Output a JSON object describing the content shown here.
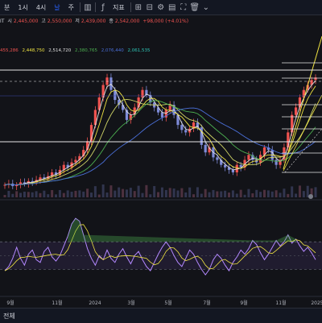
{
  "toolbar": {
    "items": [
      "분",
      "1시",
      "4시",
      "날",
      "주"
    ],
    "indicators_label": "지표",
    "title_fragment": "IT"
  },
  "ohlc": {
    "open_label": "시",
    "open": "2,445,000",
    "high_label": "고",
    "high": "2,550,000",
    "low_label": "저",
    "low": "2,439,000",
    "close_label": "종",
    "close": "2,542,000",
    "change": "+98,000 (+4.01%)"
  },
  "ma_values": [
    "455,286",
    "2,448,750",
    "2,514,720",
    "2,380,765",
    "2,076,440",
    "2,061,535"
  ],
  "colors": {
    "up": "#ef5350",
    "down": "#7e8bd8",
    "ma_white": "#e0e0e0",
    "ma_yellow": "#f0e442",
    "ma_olive": "#cfd467",
    "ma_green": "#4caf50",
    "ma_blue": "#4a6fd8",
    "rsi_line": "#b388ff"
  },
  "footer": {
    "label": "전체"
  },
  "chart_data": {
    "type": "line",
    "x_ticks": [
      "9월",
      "11월",
      "2024",
      "3월",
      "5월",
      "7월",
      "9월",
      "11월",
      "2025"
    ],
    "x": [
      0,
      1,
      2,
      3,
      4,
      5,
      6,
      7,
      8,
      9,
      10,
      11,
      12,
      13,
      14,
      15,
      16,
      17,
      18,
      19,
      20,
      21,
      22,
      23,
      24,
      25,
      26,
      27,
      28,
      29,
      30,
      31,
      32,
      33,
      34,
      35,
      36,
      37,
      38,
      39,
      40,
      41,
      42,
      43,
      44,
      45,
      46,
      47,
      48,
      49,
      50,
      51,
      52,
      53,
      54,
      55,
      56,
      57,
      58,
      59,
      60,
      61,
      62,
      63,
      64,
      65,
      66,
      67,
      68,
      69,
      70,
      71,
      72,
      73,
      74,
      75,
      76,
      77,
      78,
      79
    ],
    "series": [
      {
        "values": [
          0.1,
          0.11,
          0.09,
          0.1,
          0.12,
          0.11,
          0.13,
          0.12,
          0.14,
          0.16,
          0.15,
          0.17,
          0.2,
          0.18,
          0.22,
          0.26,
          0.24,
          0.28,
          0.3,
          0.33,
          0.38,
          0.45,
          0.58,
          0.7,
          0.8,
          0.9,
          0.96,
          0.86,
          0.78,
          0.74,
          0.7,
          0.62,
          0.66,
          0.72,
          0.8,
          0.86,
          0.82,
          0.76,
          0.72,
          0.68,
          0.64,
          0.7,
          0.74,
          0.66,
          0.58,
          0.54,
          0.52,
          0.55,
          0.6,
          0.56,
          0.42,
          0.36,
          0.4,
          0.32,
          0.3,
          0.26,
          0.24,
          0.22,
          0.2,
          0.26,
          0.24,
          0.3,
          0.34,
          0.3,
          0.28,
          0.34,
          0.4,
          0.38,
          0.3,
          0.26,
          0.3,
          0.4,
          0.52,
          0.66,
          0.72,
          0.8,
          0.86,
          0.9,
          0.94,
          0.96
        ]
      },
      {
        "values": [
          28,
          34,
          46,
          62,
          46,
          36,
          52,
          58,
          44,
          40,
          56,
          62,
          48,
          42,
          50,
          64,
          78,
          96,
          104,
          100,
          80,
          60,
          46,
          36,
          50,
          44,
          58,
          46,
          40,
          52,
          60,
          48,
          38,
          50,
          56,
          44,
          34,
          28,
          40,
          52,
          62,
          70,
          62,
          50,
          40,
          34,
          46,
          58,
          52,
          40,
          30,
          22,
          30,
          44,
          52,
          46,
          36,
          28,
          40,
          48,
          58,
          52,
          60,
          72,
          66,
          54,
          44,
          52,
          62,
          72,
          64,
          70,
          80,
          68,
          74,
          64,
          56,
          62,
          54,
          44
        ]
      }
    ]
  }
}
